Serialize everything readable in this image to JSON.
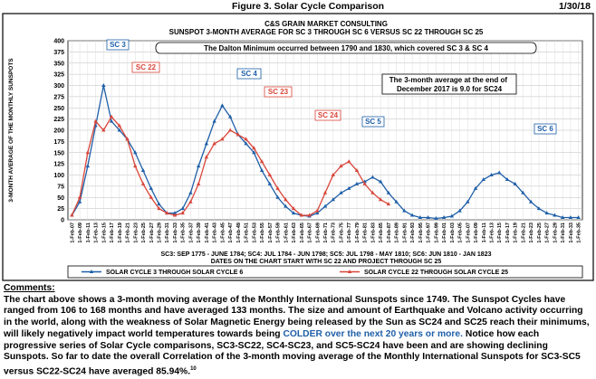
{
  "header": {
    "title": "Figure 3.  Solar Cycle Comparison",
    "date": "1/30/18"
  },
  "chart_data": {
    "type": "line",
    "title": "C&S GRAIN MARKET CONSULTING",
    "subtitle": "SUNSPOT 3-MONTH AVERAGE FOR SC 3 THROUGH SC 6 VERSUS SC 22 THROUGH SC 25",
    "y_label": "3-MONTH AVERAGE OF THE MONTHLY SUNSPOTS",
    "ylim": [
      0,
      400
    ],
    "yticks": [
      0,
      25,
      50,
      75,
      100,
      125,
      150,
      175,
      200,
      225,
      250,
      275,
      300,
      325,
      350,
      375,
      400
    ],
    "grid": true,
    "categories": [
      "1-Feb-07",
      "1-Feb-09",
      "1-Feb-11",
      "1-Feb-13",
      "1-Feb-15",
      "1-Feb-17",
      "1-Feb-19",
      "1-Feb-21",
      "1-Feb-23",
      "1-Feb-25",
      "1-Feb-27",
      "1-Feb-29",
      "1-Feb-31",
      "1-Feb-33",
      "1-Feb-35",
      "1-Feb-37",
      "1-Feb-39",
      "1-Feb-41",
      "1-Feb-43",
      "1-Feb-45",
      "1-Feb-47",
      "1-Feb-49",
      "1-Feb-51",
      "1-Feb-53",
      "1-Feb-55",
      "1-Feb-57",
      "1-Feb-59",
      "1-Feb-61",
      "1-Feb-63",
      "1-Feb-65",
      "1-Feb-67",
      "1-Feb-69",
      "1-Feb-71",
      "1-Feb-73",
      "1-Feb-75",
      "1-Feb-77",
      "1-Feb-79",
      "1-Feb-81",
      "1-Feb-83",
      "1-Feb-85",
      "1-Feb-87",
      "1-Feb-89",
      "1-Feb-91",
      "1-Feb-93",
      "1-Feb-95",
      "1-Feb-97",
      "1-Feb-99",
      "1-Feb-01",
      "1-Feb-03",
      "1-Feb-05",
      "1-Feb-07",
      "1-Feb-09",
      "1-Feb-11",
      "1-Feb-13",
      "1-Feb-15",
      "1-Feb-17",
      "1-Feb-19",
      "1-Feb-21",
      "1-Feb-23",
      "1-Feb-25",
      "1-Feb-27",
      "1-Feb-29",
      "1-Feb-31",
      "1-Feb-33",
      "1-Feb-35"
    ],
    "series": [
      {
        "name": "SOLAR CYCLE 3 THROUGH SOLAR CYCLE 6",
        "color": "#1f5fa8",
        "values": [
          10,
          40,
          120,
          210,
          300,
          220,
          200,
          180,
          150,
          110,
          70,
          35,
          15,
          15,
          25,
          60,
          120,
          170,
          220,
          255,
          230,
          190,
          170,
          150,
          110,
          80,
          50,
          30,
          15,
          10,
          8,
          15,
          30,
          45,
          60,
          70,
          80,
          85,
          95,
          85,
          60,
          40,
          20,
          10,
          5,
          5,
          3,
          5,
          8,
          20,
          40,
          70,
          90,
          100,
          105,
          90,
          80,
          60,
          40,
          25,
          15,
          10,
          5,
          5,
          5
        ]
      },
      {
        "name": "SOLAR CYCLE 22 THROUGH SOLAR CYCLE 25",
        "color": "#d9453a",
        "values": [
          10,
          50,
          150,
          220,
          200,
          230,
          210,
          180,
          120,
          80,
          50,
          25,
          15,
          10,
          15,
          40,
          80,
          140,
          170,
          180,
          200,
          190,
          180,
          160,
          130,
          100,
          70,
          45,
          25,
          10,
          10,
          20,
          60,
          100,
          120,
          130,
          110,
          80,
          60,
          45,
          35,
          null,
          null,
          null,
          null,
          null,
          null,
          null,
          null,
          null,
          null,
          null,
          null,
          null,
          null,
          null,
          null,
          null,
          null,
          null,
          null,
          null,
          null,
          null,
          null
        ]
      }
    ],
    "annotations": [
      "SC 3",
      "SC 22",
      "SC 4",
      "SC 23",
      "SC 24",
      "SC 5",
      "SC 6",
      "The Dalton Minimum occurred between 1790 and 1830, which covered SC 3 & SC 4",
      "The 3-month average at the end of December 2017 is 9.0 for SC24"
    ],
    "notes": [
      "SC3: SEP 1775 - JUNE 1784; SC4: JUL 1784 - JUN 1798; SC5: JUL 1798 - MAY 1810; SC6: JUN 1810 - JAN 1823",
      "DATES ON THE CHART START WITH SC 22 AND PROJECT THROUGH SC 25"
    ]
  },
  "comments": {
    "heading": "Comments:",
    "text_before": "The chart above shows a 3-month moving average of the Monthly International Sunspots since 1749. The Sunspot Cycles have ranged from 106 to 168 months and have averaged 133 months. The size and amount of Earthquake and Volcano activity occurring in the world, along with the weakness of Solar Magnetic Energy being released by the Sun as SC24 and SC25 reach their minimums, will likely negatively impact world temperatures towards being ",
    "highlight": "COLDER over the next 20 years or more.",
    "text_after": " Notice how each progressive series of Solar Cycle comparisons, SC3-SC22, SC4-SC23, and SC5-SC24 have been and are showing declining Sunspots. So far to date the overall Correlation of the 3-month moving average of the Monthly International Sunspots for SC3-SC5 versus SC22-SC24 have averaged 85.94%.",
    "footnote": "10"
  }
}
